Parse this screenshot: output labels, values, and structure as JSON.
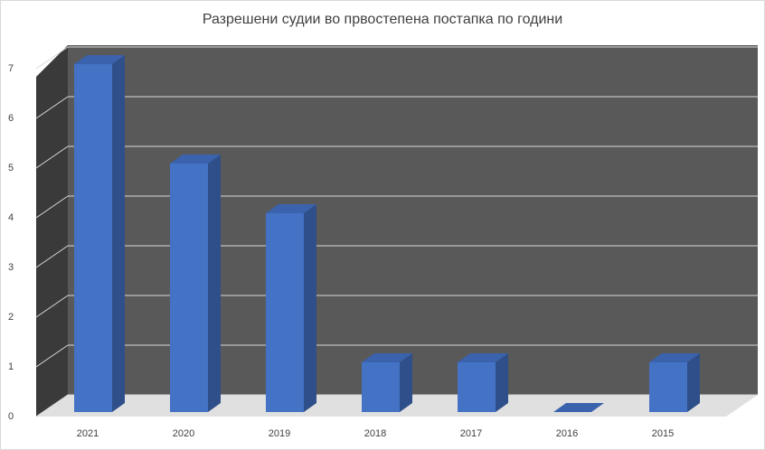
{
  "chart_data": {
    "type": "bar3d",
    "title": "Разрешени судии во првостепена постапка по години",
    "categories": [
      "2021",
      "2020",
      "2019",
      "2018",
      "2017",
      "2016",
      "2015"
    ],
    "values": [
      7,
      5,
      4,
      1,
      1,
      0,
      1
    ],
    "color": "#4472c4",
    "ylim": [
      0,
      7
    ],
    "yticks": [
      0,
      1,
      2,
      3,
      4,
      5,
      6,
      7
    ],
    "grid": true
  }
}
